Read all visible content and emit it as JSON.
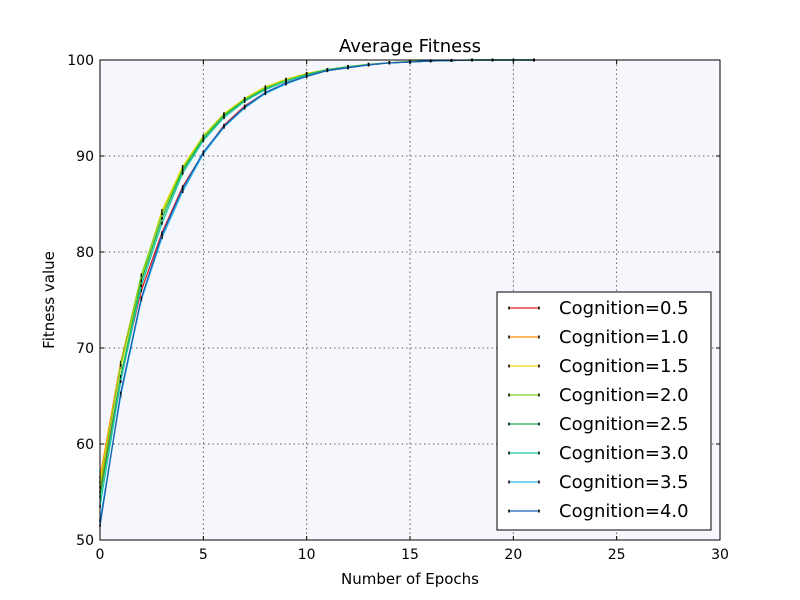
{
  "chart_data": {
    "type": "line",
    "title": "Average Fitness",
    "xlabel": "Number of Epochs",
    "ylabel": "Fitness value",
    "xlim": [
      0,
      30
    ],
    "ylim": [
      50,
      100
    ],
    "xticks": [
      "0",
      "5",
      "10",
      "15",
      "20",
      "25",
      "30"
    ],
    "yticks": [
      "50",
      "60",
      "70",
      "80",
      "90",
      "100"
    ],
    "grid": true,
    "legend_position": "lower-right",
    "plot_background": "#f5f7fc",
    "x": [
      0,
      1,
      2,
      3,
      4,
      5,
      6,
      7,
      8,
      9,
      10,
      11,
      12,
      13,
      14,
      15,
      16,
      17,
      18,
      19,
      20,
      21
    ],
    "series": [
      {
        "name": "Cognition=0.5",
        "color": "#e41a1c",
        "values": [
          55.0,
          67.0,
          76.0,
          82.0,
          86.8,
          90.3,
          93.2,
          95.2,
          96.6,
          97.6,
          98.3,
          98.9,
          99.2,
          99.5,
          99.7,
          99.8,
          99.9,
          99.95,
          100,
          100,
          100,
          100
        ]
      },
      {
        "name": "Cognition=1.0",
        "color": "#ff8c00",
        "values": [
          56.5,
          68.5,
          77.5,
          84.0,
          88.8,
          92.0,
          94.3,
          95.9,
          97.1,
          97.9,
          98.5,
          99.0,
          99.3,
          99.5,
          99.7,
          99.8,
          99.9,
          99.95,
          100,
          100,
          100,
          100
        ]
      },
      {
        "name": "Cognition=1.5",
        "color": "#f2d600",
        "values": [
          56.0,
          68.0,
          77.3,
          84.3,
          88.9,
          92.1,
          94.4,
          96.0,
          97.2,
          98.0,
          98.6,
          99.0,
          99.3,
          99.55,
          99.7,
          99.85,
          99.9,
          99.95,
          100,
          100,
          100,
          100
        ]
      },
      {
        "name": "Cognition=2.0",
        "color": "#7ad61d",
        "values": [
          55.5,
          68.2,
          77.6,
          84.0,
          88.7,
          92.0,
          94.3,
          95.9,
          97.1,
          97.9,
          98.5,
          99.0,
          99.3,
          99.55,
          99.7,
          99.85,
          99.9,
          99.95,
          100,
          100,
          100,
          100
        ]
      },
      {
        "name": "Cognition=2.5",
        "color": "#1fb04a",
        "values": [
          54.5,
          67.0,
          77.0,
          83.5,
          88.5,
          91.8,
          94.2,
          95.8,
          97.0,
          97.8,
          98.5,
          99.0,
          99.3,
          99.5,
          99.7,
          99.8,
          99.9,
          99.95,
          100,
          100,
          100,
          100
        ]
      },
      {
        "name": "Cognition=3.0",
        "color": "#1ec8a8",
        "values": [
          53.5,
          66.5,
          76.5,
          83.0,
          88.2,
          91.6,
          94.0,
          95.7,
          96.9,
          97.8,
          98.4,
          98.9,
          99.25,
          99.5,
          99.7,
          99.8,
          99.9,
          99.95,
          100,
          100,
          100,
          100
        ]
      },
      {
        "name": "Cognition=3.5",
        "color": "#29b6e8",
        "values": [
          52.0,
          65.0,
          75.0,
          81.5,
          86.3,
          90.2,
          93.0,
          95.0,
          96.5,
          97.5,
          98.3,
          98.9,
          99.2,
          99.5,
          99.7,
          99.8,
          99.9,
          99.95,
          100,
          100,
          100,
          100
        ]
      },
      {
        "name": "Cognition=4.0",
        "color": "#1a5fb4",
        "values": [
          51.5,
          65.3,
          75.2,
          81.8,
          86.6,
          90.4,
          93.1,
          95.1,
          96.6,
          97.6,
          98.3,
          98.9,
          99.2,
          99.5,
          99.7,
          99.8,
          99.9,
          99.95,
          100,
          100,
          100,
          100
        ]
      }
    ]
  }
}
